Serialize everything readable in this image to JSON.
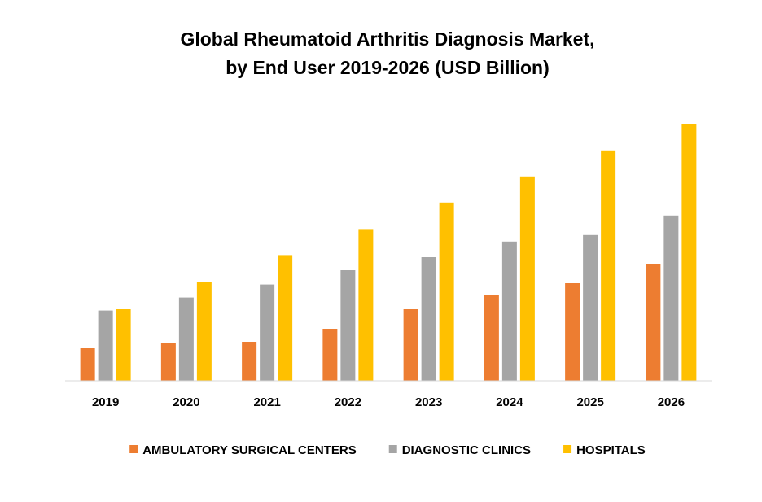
{
  "chart_data": {
    "type": "bar",
    "title": "Global Rheumatoid Arthritis Diagnosis Market,",
    "subtitle": "by End User 2019-2026 (USD Billion)",
    "xlabel": "",
    "ylabel": "",
    "categories": [
      "2019",
      "2020",
      "2021",
      "2022",
      "2023",
      "2024",
      "2025",
      "2026"
    ],
    "ylim": [
      0,
      100
    ],
    "grid": false,
    "legend_position": "bottom",
    "series": [
      {
        "name": "AMBULATORY SURGICAL CENTERS",
        "color": "#ED7D31",
        "values": [
          12.5,
          14.5,
          15,
          20,
          27.5,
          33,
          37.5,
          45
        ]
      },
      {
        "name": "DIAGNOSTIC CLINICS",
        "color": "#A5A5A5",
        "values": [
          27,
          32,
          37,
          42.5,
          47.5,
          53.5,
          56,
          63.5
        ]
      },
      {
        "name": "HOSPITALS",
        "color": "#FFC000",
        "values": [
          27.5,
          38,
          48,
          58,
          68.5,
          78.5,
          88.5,
          98.5
        ]
      }
    ]
  }
}
